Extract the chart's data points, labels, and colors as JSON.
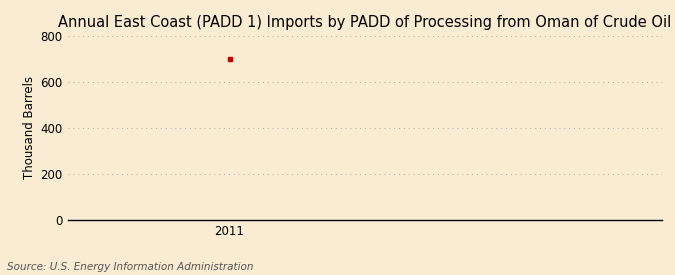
{
  "title": "Annual East Coast (PADD 1) Imports by PADD of Processing from Oman of Crude Oil",
  "ylabel": "Thousand Barrels",
  "source": "Source: U.S. Energy Information Administration",
  "x_data": [
    2011
  ],
  "y_data": [
    700
  ],
  "point_color": "#cc0000",
  "marker": "s",
  "marker_size": 3,
  "ylim": [
    0,
    800
  ],
  "yticks": [
    0,
    200,
    400,
    600,
    800
  ],
  "xlim": [
    2010.4,
    2012.6
  ],
  "xticks": [
    2011
  ],
  "background_color": "#faecd2",
  "plot_bg_color": "#faecd2",
  "grid_color": "#aaaaaa",
  "title_fontsize": 10.5,
  "label_fontsize": 8.5,
  "tick_fontsize": 8.5,
  "source_fontsize": 7.5
}
